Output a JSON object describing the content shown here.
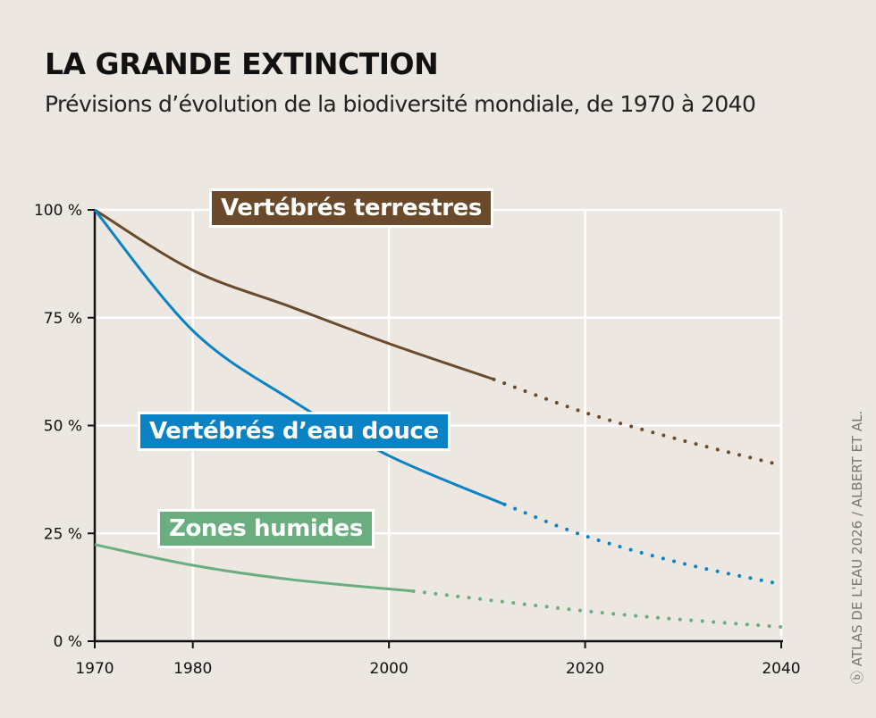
{
  "title": "LA GRANDE EXTINCTION",
  "subtitle": "Prévisions d’évolution de la biodiversité mondiale, de 1970 à 2040",
  "credit": "ⓑ ATLAS DE L'EAU 2026 / ALBERT ET AL.",
  "chart_data": {
    "type": "line",
    "title": "LA GRANDE EXTINCTION",
    "subtitle": "Prévisions d’évolution de la biodiversité mondiale, de 1970 à 2040",
    "xlim": [
      1970,
      2040
    ],
    "ylim": [
      0,
      100
    ],
    "x_ticks": [
      "1970",
      "1980",
      "2000",
      "2020",
      "2040"
    ],
    "x_tick_values": [
      1970,
      1980,
      2000,
      2020,
      2040
    ],
    "y_ticks": [
      "0 %",
      "25 %",
      "50 %",
      "75 %",
      "100 %"
    ],
    "y_tick_values": [
      0,
      25,
      50,
      75,
      100
    ],
    "grid": true,
    "note": "solid = observed, dotted = projection",
    "series": [
      {
        "name": "Vertébrés terrestres",
        "color": "#6b4a2b",
        "observed": {
          "x": [
            1970,
            1980,
            1990,
            2000,
            2010.7
          ],
          "y": [
            100,
            86,
            77.5,
            69,
            60.7
          ]
        },
        "projected": {
          "x": [
            2010.7,
            2020,
            2030,
            2040
          ],
          "y": [
            60.7,
            53,
            46.5,
            40.8
          ]
        }
      },
      {
        "name": "Vertébrés d’eau douce",
        "color": "#0a82c4",
        "observed": {
          "x": [
            1970,
            1980,
            1990,
            2000,
            2011.8
          ],
          "y": [
            100,
            72,
            56,
            43,
            31.7
          ]
        },
        "projected": {
          "x": [
            2011.8,
            2020,
            2030,
            2040
          ],
          "y": [
            31.7,
            24.4,
            18,
            13.2
          ]
        }
      },
      {
        "name": "Zones humides",
        "color": "#6aae7f",
        "observed": {
          "x": [
            1970,
            1980,
            1990,
            2002.5
          ],
          "y": [
            22.4,
            17.6,
            14.3,
            11.6
          ]
        },
        "projected": {
          "x": [
            2002.5,
            2020,
            2030,
            2040
          ],
          "y": [
            11.6,
            7,
            5,
            3.3
          ]
        }
      }
    ]
  }
}
